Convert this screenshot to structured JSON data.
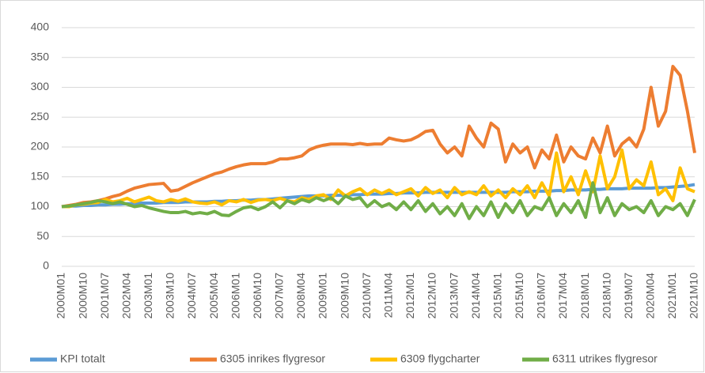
{
  "chart_data": {
    "type": "line",
    "categories": [
      "2000M01",
      null,
      null,
      "2000M10",
      null,
      null,
      "2001M07",
      null,
      null,
      "2002M04",
      null,
      null,
      "2003M01",
      null,
      null,
      "2003M10",
      null,
      null,
      "2004M07",
      null,
      null,
      "2005M04",
      null,
      null,
      "2006M01",
      null,
      null,
      "2006M10",
      null,
      null,
      "2007M07",
      null,
      null,
      "2008M04",
      null,
      null,
      "2009M01",
      null,
      null,
      "2009M10",
      null,
      null,
      "2010M07",
      null,
      null,
      "2011M04",
      null,
      null,
      "2012M01",
      null,
      null,
      "2012M10",
      null,
      null,
      "2013M07",
      null,
      null,
      "2014M04",
      null,
      null,
      "2015M01",
      null,
      null,
      "2015M10",
      null,
      null,
      "2016M07",
      null,
      null,
      "2017M04",
      null,
      null,
      "2018M01",
      null,
      null,
      "2018M10",
      null,
      null,
      "2019M07",
      null,
      null,
      "2020M04",
      null,
      null,
      "2021M01",
      null,
      null,
      "2021M10"
    ],
    "series": [
      {
        "name": "KPI totalt",
        "color": "#5b9bd5",
        "values": [
          100,
          101,
          101,
          102,
          102,
          103,
          103,
          104,
          104,
          105,
          105,
          106,
          106,
          106,
          107,
          107,
          107,
          108,
          108,
          108,
          108,
          109,
          109,
          110,
          110,
          111,
          111,
          112,
          112,
          113,
          114,
          115,
          116,
          117,
          118,
          118,
          118,
          119,
          119,
          119,
          120,
          120,
          121,
          121,
          121,
          122,
          122,
          123,
          123,
          123,
          124,
          124,
          124,
          124,
          124,
          124,
          124,
          124,
          124,
          124,
          124,
          124,
          125,
          125,
          125,
          126,
          126,
          126,
          127,
          127,
          128,
          128,
          128,
          129,
          129,
          130,
          130,
          130,
          131,
          131,
          131,
          131,
          132,
          132,
          133,
          134,
          135,
          137
        ]
      },
      {
        "name": "6305 inrikes flygresor",
        "color": "#ed7d31",
        "values": [
          100,
          102,
          104,
          107,
          108,
          110,
          113,
          117,
          120,
          126,
          131,
          134,
          137,
          138,
          139,
          126,
          128,
          134,
          140,
          145,
          150,
          155,
          158,
          163,
          167,
          170,
          172,
          172,
          172,
          175,
          180,
          180,
          182,
          185,
          195,
          200,
          203,
          205,
          205,
          205,
          204,
          206,
          204,
          205,
          205,
          215,
          212,
          210,
          212,
          218,
          226,
          228,
          205,
          190,
          200,
          185,
          235,
          215,
          200,
          240,
          230,
          175,
          205,
          190,
          200,
          165,
          195,
          180,
          220,
          175,
          200,
          185,
          180,
          215,
          190,
          235,
          185,
          205,
          215,
          200,
          230,
          300,
          235,
          260,
          335,
          320,
          260,
          190
        ]
      },
      {
        "name": "6309 flygcharter",
        "color": "#ffc000",
        "values": [
          100,
          100,
          103,
          104,
          106,
          107,
          112,
          108,
          110,
          114,
          108,
          112,
          116,
          110,
          108,
          112,
          109,
          113,
          108,
          106,
          105,
          108,
          103,
          110,
          108,
          112,
          107,
          111,
          112,
          110,
          114,
          110,
          108,
          115,
          112,
          118,
          120,
          112,
          128,
          118,
          125,
          130,
          120,
          128,
          122,
          128,
          120,
          125,
          130,
          118,
          132,
          122,
          128,
          115,
          132,
          120,
          125,
          120,
          135,
          118,
          128,
          115,
          130,
          120,
          135,
          115,
          140,
          118,
          190,
          125,
          150,
          120,
          160,
          125,
          185,
          130,
          150,
          195,
          130,
          145,
          135,
          175,
          120,
          130,
          110,
          165,
          130,
          125
        ]
      },
      {
        "name": "6311 utrikes flygresor",
        "color": "#70ad47",
        "values": [
          100,
          101,
          103,
          105,
          107,
          110,
          108,
          105,
          108,
          104,
          100,
          102,
          98,
          95,
          92,
          90,
          90,
          92,
          88,
          90,
          88,
          92,
          86,
          85,
          92,
          98,
          100,
          95,
          100,
          108,
          98,
          110,
          105,
          112,
          108,
          115,
          110,
          115,
          105,
          118,
          112,
          115,
          100,
          110,
          100,
          105,
          95,
          108,
          95,
          110,
          92,
          105,
          88,
          100,
          85,
          105,
          80,
          100,
          85,
          108,
          82,
          105,
          90,
          110,
          85,
          100,
          95,
          115,
          85,
          105,
          90,
          110,
          82,
          140,
          90,
          115,
          85,
          105,
          95,
          100,
          90,
          110,
          85,
          100,
          95,
          105,
          85,
          112
        ]
      }
    ],
    "ylim": [
      0,
      400
    ],
    "yticks": [
      0,
      50,
      100,
      150,
      200,
      250,
      300,
      350,
      400
    ],
    "grid": true
  }
}
